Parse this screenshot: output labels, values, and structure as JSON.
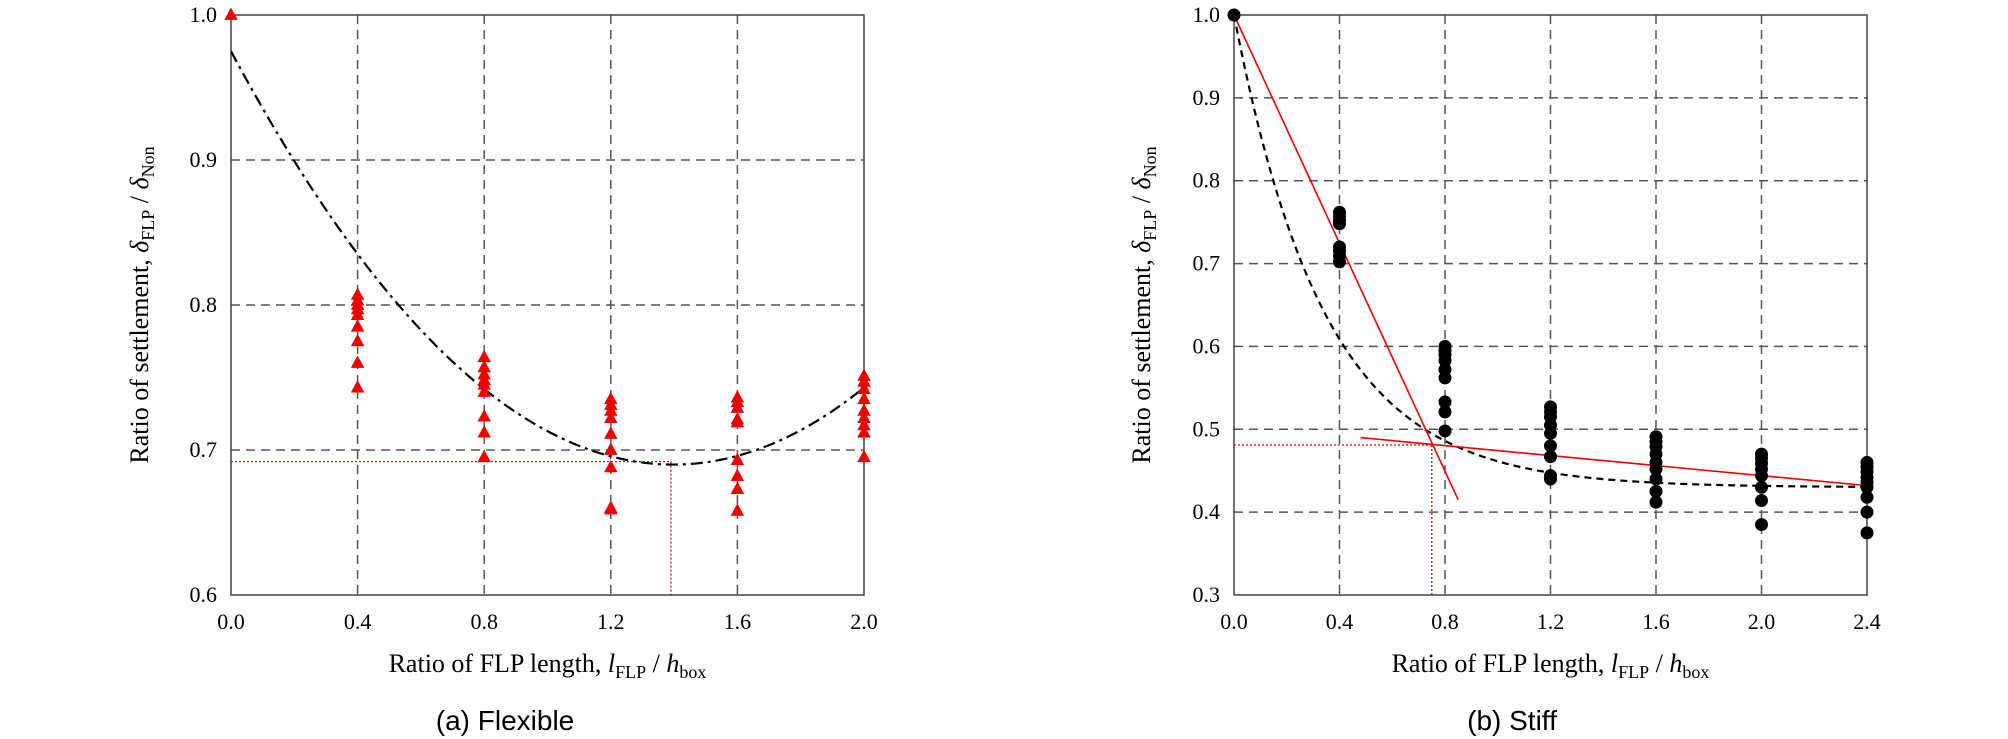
{
  "chart_data": [
    {
      "type": "scatter",
      "caption": "(a) Flexible",
      "xlabel": {
        "main": "Ratio of FLP length, ",
        "l": "l",
        "lsub": "FLP",
        "sep": " / ",
        "h": "h",
        "hsub": "box"
      },
      "ylabel": {
        "main": "Ratio of settlement, ",
        "d1": "δ",
        "d1sub": "FLP",
        "sep": " / ",
        "d2": "δ",
        "d2sub": "Non"
      },
      "xlim": [
        0.0,
        2.0
      ],
      "ylim": [
        0.6,
        1.0
      ],
      "xticks": [
        "0.0",
        "0.4",
        "0.8",
        "1.2",
        "1.6",
        "2.0"
      ],
      "yticks": [
        "0.6",
        "0.7",
        "0.8",
        "0.9",
        "1.0"
      ],
      "grid": true,
      "marker": "triangle",
      "marker_color": "#ee0000",
      "series": [
        {
          "x": [
            0.0
          ],
          "y": [
            1.0
          ]
        },
        {
          "x": [
            0.4,
            0.4,
            0.4,
            0.4,
            0.4,
            0.4,
            0.4,
            0.4,
            0.4
          ],
          "y": [
            0.807,
            0.803,
            0.8,
            0.797,
            0.793,
            0.785,
            0.775,
            0.76,
            0.743
          ]
        },
        {
          "x": [
            0.8,
            0.8,
            0.8,
            0.8,
            0.8,
            0.8,
            0.8,
            0.8,
            0.8
          ],
          "y": [
            0.764,
            0.757,
            0.752,
            0.748,
            0.745,
            0.74,
            0.723,
            0.712,
            0.695
          ]
        },
        {
          "x": [
            1.2,
            1.2,
            1.2,
            1.2,
            1.2,
            1.2,
            1.2,
            1.2,
            1.2
          ],
          "y": [
            0.735,
            0.731,
            0.727,
            0.722,
            0.711,
            0.7,
            0.688,
            0.66,
            0.659
          ]
        },
        {
          "x": [
            1.6,
            1.6,
            1.6,
            1.6,
            1.6,
            1.6,
            1.6,
            1.6,
            1.6
          ],
          "y": [
            0.736,
            0.733,
            0.729,
            0.721,
            0.719,
            0.693,
            0.682,
            0.673,
            0.658
          ]
        },
        {
          "x": [
            2.0,
            2.0,
            2.0,
            2.0,
            2.0,
            2.0,
            2.0,
            2.0,
            2.0
          ],
          "y": [
            0.751,
            0.747,
            0.742,
            0.735,
            0.727,
            0.722,
            0.717,
            0.712,
            0.695
          ]
        }
      ],
      "trend": {
        "style": "dash-dot",
        "color": "#000000",
        "type": "quadratic",
        "coeffs": [
          0.975,
          -0.408,
          0.146
        ],
        "x_range": [
          0.0,
          2.0
        ]
      },
      "guides": {
        "color": "#ee0000",
        "style": "dotted",
        "x": 1.39,
        "y": 0.692
      }
    },
    {
      "type": "scatter",
      "caption": "(b) Stiff",
      "xlabel": {
        "main": "Ratio of FLP length, ",
        "l": "l",
        "lsub": "FLP",
        "sep": " / ",
        "h": "h",
        "hsub": "box"
      },
      "ylabel": {
        "main": "Ratio of settlement, ",
        "d1": "δ",
        "d1sub": "FLP",
        "sep": " / ",
        "d2": "δ",
        "d2sub": "Non"
      },
      "xlim": [
        0.0,
        2.4
      ],
      "ylim": [
        0.3,
        1.0
      ],
      "xticks": [
        "0.0",
        "0.4",
        "0.8",
        "1.2",
        "1.6",
        "2.0",
        "2.4"
      ],
      "yticks": [
        "0.3",
        "0.4",
        "0.5",
        "0.6",
        "0.7",
        "0.8",
        "0.9",
        "1.0"
      ],
      "grid": true,
      "marker": "circle",
      "marker_color": "#000000",
      "series": [
        {
          "x": [
            0.0
          ],
          "y": [
            1.0
          ]
        },
        {
          "x": [
            0.4,
            0.4,
            0.4,
            0.4,
            0.4,
            0.4,
            0.4,
            0.4
          ],
          "y": [
            0.762,
            0.757,
            0.752,
            0.748,
            0.72,
            0.715,
            0.709,
            0.702
          ]
        },
        {
          "x": [
            0.8,
            0.8,
            0.8,
            0.8,
            0.8,
            0.8,
            0.8,
            0.8,
            0.8
          ],
          "y": [
            0.6,
            0.595,
            0.59,
            0.583,
            0.572,
            0.562,
            0.533,
            0.521,
            0.498
          ]
        },
        {
          "x": [
            1.2,
            1.2,
            1.2,
            1.2,
            1.2,
            1.2,
            1.2,
            1.2,
            1.2
          ],
          "y": [
            0.527,
            0.521,
            0.515,
            0.505,
            0.495,
            0.48,
            0.467,
            0.444,
            0.44
          ]
        },
        {
          "x": [
            1.6,
            1.6,
            1.6,
            1.6,
            1.6,
            1.6,
            1.6,
            1.6,
            1.6
          ],
          "y": [
            0.491,
            0.485,
            0.479,
            0.47,
            0.46,
            0.452,
            0.44,
            0.425,
            0.412
          ]
        },
        {
          "x": [
            2.0,
            2.0,
            2.0,
            2.0,
            2.0,
            2.0,
            2.0,
            2.0
          ],
          "y": [
            0.47,
            0.465,
            0.459,
            0.452,
            0.444,
            0.43,
            0.414,
            0.385
          ]
        },
        {
          "x": [
            2.4,
            2.4,
            2.4,
            2.4,
            2.4,
            2.4,
            2.4,
            2.4,
            2.4
          ],
          "y": [
            0.46,
            0.455,
            0.449,
            0.442,
            0.436,
            0.43,
            0.418,
            0.4,
            0.375
          ]
        }
      ],
      "trend": {
        "style": "dashed",
        "color": "#000000",
        "type": "exp-decay",
        "coeffs": [
          0.43,
          0.57,
          2.9
        ],
        "x_range": [
          0.0,
          2.4
        ]
      },
      "fit_lines": {
        "color": "#ee0000",
        "lines": [
          [
            [
              0.0,
              1.0
            ],
            [
              0.85,
              0.415
            ]
          ],
          [
            [
              0.48,
              0.49
            ],
            [
              2.4,
              0.432
            ]
          ]
        ]
      },
      "guides": {
        "color": "#ee0000",
        "style": "dotted",
        "x": 0.75,
        "y": 0.481
      }
    }
  ]
}
